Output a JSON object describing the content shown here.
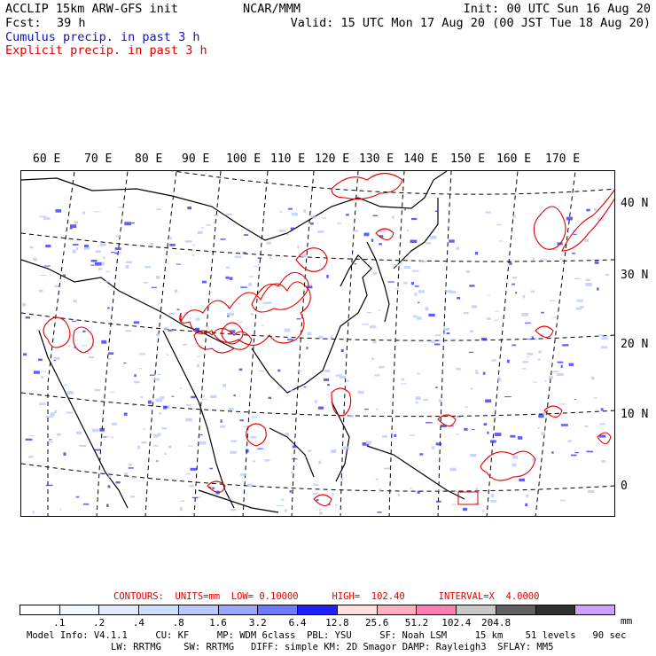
{
  "header": {
    "title": "ACCLIP 15km ARW-GFS init",
    "fcst_label": "Fcst:",
    "fcst_value": "39 h",
    "center": "NCAR/MMM",
    "init": "Init: 00 UTC Sun 16 Aug 20",
    "valid": "Valid: 15 UTC Mon 17 Aug 20 (00 JST Tue 18 Aug 20)",
    "cumulus": "Cumulus precip. in past 3 h",
    "explicit": "Explicit precip. in past 3 h"
  },
  "map": {
    "lon_labels": [
      "60 E",
      "70 E",
      "80 E",
      "90 E",
      "100 E",
      "110 E",
      "120 E",
      "130 E",
      "140 E",
      "150 E",
      "160 E",
      "170 E"
    ],
    "lat_labels": [
      "40 N",
      "30 N",
      "20 N",
      "10 N",
      "0"
    ],
    "colors": {
      "explicit": "#e00000",
      "cumulus": "#3030ff",
      "coast": "#000000"
    }
  },
  "contours": {
    "text": "CONTOURS:  UNITS=mm  LOW= 0.10000      HIGH=  102.40      INTERVAL=X  4.0000"
  },
  "legend": {
    "colors": [
      "#ffffff",
      "#f4f8ff",
      "#e3ecff",
      "#cfdfff",
      "#b9c8ff",
      "#9aa8ff",
      "#6f78ff",
      "#2020ff",
      "#ffe0e0",
      "#ffb0c0",
      "#ff80b0",
      "#c8c8c8",
      "#606060",
      "#303030",
      "#d0a0ff"
    ],
    "ticks": [
      ".1",
      ".2",
      ".4",
      ".8",
      "1.6",
      "3.2",
      "6.4",
      "12.8",
      "25.6",
      "51.2",
      "102.4",
      "204.8"
    ],
    "unit": "mm"
  },
  "footer": {
    "line1": "Model Info: V4.1.1     CU: KF     MP: WDM 6class  PBL: YSU     SF: Noah LSM     15 km    51 levels   90 sec",
    "line2": "LW: RRTMG    SW: RRTMG   DIFF: simple KM: 2D Smagor DAMP: Rayleigh3  SFLAY: MM5"
  }
}
